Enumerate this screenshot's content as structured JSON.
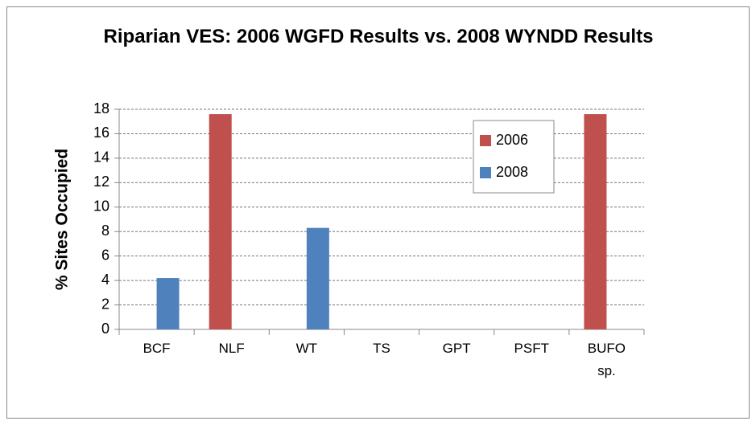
{
  "chart_data": {
    "type": "bar",
    "title": "Riparian VES:  2006 WGFD Results vs. 2008 WYNDD Results",
    "ylabel": "% Sites Occupied",
    "categories": [
      "BCF",
      "NLF",
      "WT",
      "TS",
      "GPT",
      "PSFT",
      "BUFO sp."
    ],
    "series": [
      {
        "name": "2006",
        "color": "#c0504d",
        "values": [
          0,
          17.6,
          0,
          0,
          0,
          0,
          17.6
        ]
      },
      {
        "name": "2008",
        "color": "#4f81bd",
        "values": [
          4.2,
          0,
          8.3,
          0,
          0,
          0,
          0
        ]
      }
    ],
    "ylim": [
      0,
      18
    ],
    "yticks": [
      0,
      2,
      4,
      6,
      8,
      10,
      12,
      14,
      16,
      18
    ],
    "grid": true,
    "legend": "upper right"
  }
}
